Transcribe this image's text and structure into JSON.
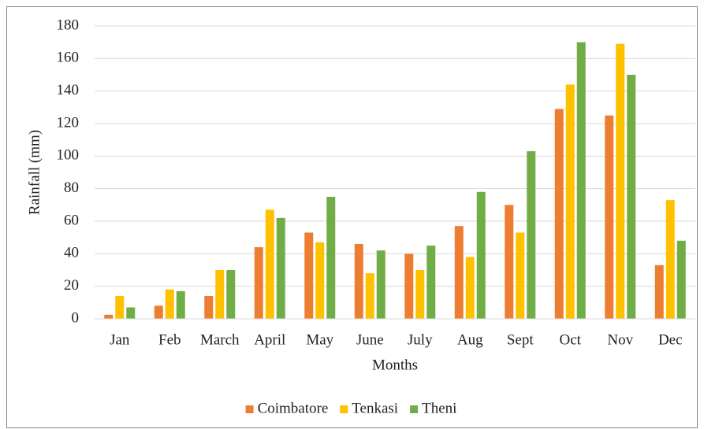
{
  "chart_data": {
    "type": "bar",
    "x_label": "Months",
    "y_label": "Rainfall (mm)",
    "categories": [
      "Jan",
      "Feb",
      "March",
      "April",
      "May",
      "June",
      "July",
      "Aug",
      "Sept",
      "Oct",
      "Nov",
      "Dec"
    ],
    "series": [
      {
        "name": "Coimbatore",
        "color": "#ed7d31",
        "values": [
          2.5,
          8,
          14,
          44,
          53,
          46,
          40,
          57,
          70,
          129,
          125,
          33
        ]
      },
      {
        "name": "Tenkasi",
        "color": "#ffc000",
        "values": [
          14,
          18,
          30,
          67,
          47,
          28,
          30,
          38,
          53,
          144,
          169,
          73
        ]
      },
      {
        "name": "Theni",
        "color": "#70ad47",
        "values": [
          7,
          17,
          30,
          62,
          75,
          42,
          45,
          78,
          103,
          170,
          150,
          48
        ]
      }
    ],
    "ylim": [
      0,
      180
    ],
    "yticks": [
      0,
      20,
      40,
      60,
      80,
      100,
      120,
      140,
      160,
      180
    ],
    "grid": true,
    "legend": "bottom"
  }
}
